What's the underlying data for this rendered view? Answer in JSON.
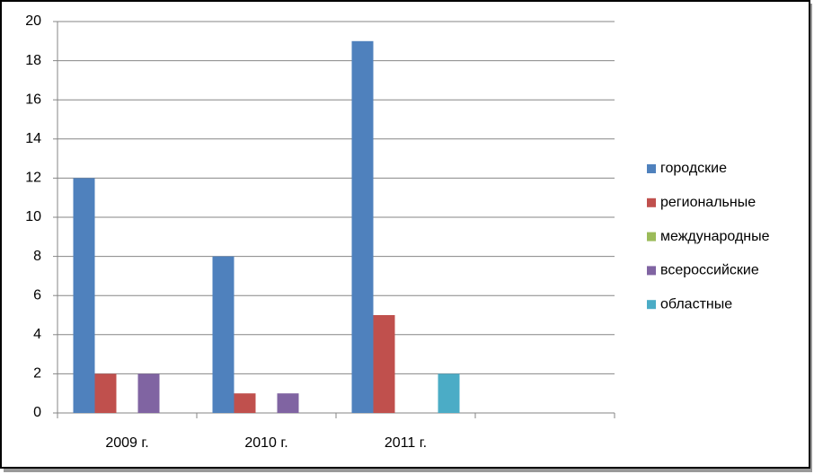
{
  "chart_data": {
    "type": "bar",
    "categories": [
      "2009 г.",
      "2010 г.",
      "2011 г.",
      null
    ],
    "series": [
      {
        "name": "городские",
        "color": "#4f81bd",
        "values": [
          12,
          8,
          19,
          null
        ]
      },
      {
        "name": "региональные",
        "color": "#c0504d",
        "values": [
          2,
          1,
          5,
          null
        ]
      },
      {
        "name": "международные",
        "color": "#9bbb59",
        "values": [
          0,
          0,
          0,
          null
        ]
      },
      {
        "name": "всероссийские",
        "color": "#8064a2",
        "values": [
          2,
          1,
          0,
          null
        ]
      },
      {
        "name": "областные",
        "color": "#4bacc6",
        "values": [
          0,
          0,
          2,
          null
        ]
      }
    ],
    "ylim": [
      0,
      20
    ],
    "yticks": [
      0,
      2,
      4,
      6,
      8,
      10,
      12,
      14,
      16,
      18,
      20
    ],
    "grid": true,
    "legend": "right"
  }
}
